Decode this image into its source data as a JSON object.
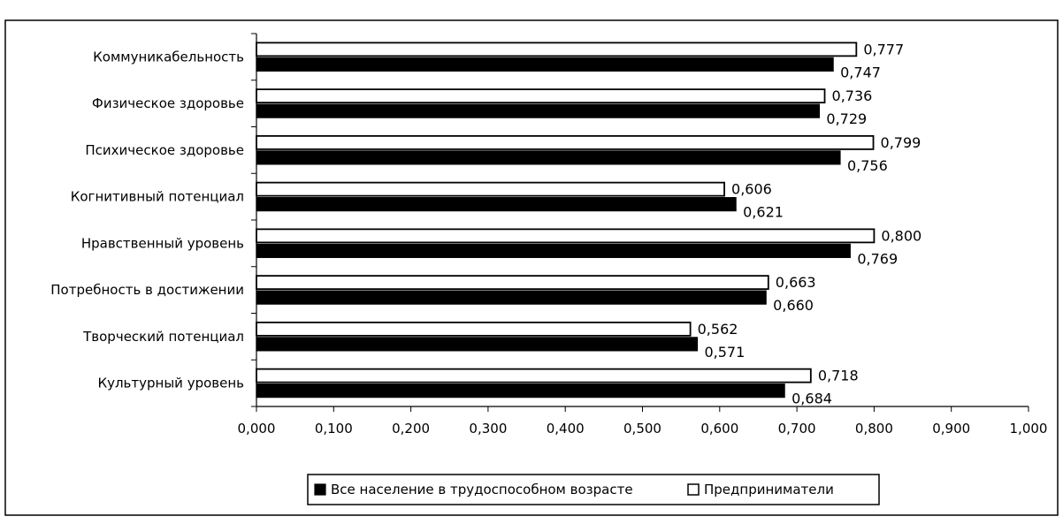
{
  "chart_data": {
    "type": "bar",
    "orientation": "horizontal",
    "title": "",
    "xlabel": "",
    "ylabel": "",
    "xlim": [
      0,
      1
    ],
    "x_ticks": [
      "0,000",
      "0,100",
      "0,200",
      "0,300",
      "0,400",
      "0,500",
      "0,600",
      "0,700",
      "0,800",
      "0,900",
      "1,000"
    ],
    "categories": [
      "Коммуникабельность",
      "Физическое здоровье",
      "Психическое здоровье",
      "Когнитивный потенциал",
      "Нравственный уровень",
      "Потребность в достижении",
      "Творческий потенциал",
      "Культурный уровень"
    ],
    "series": [
      {
        "name": "Все население в трудоспособном возрасте",
        "color": "#000000",
        "values": [
          0.747,
          0.729,
          0.756,
          0.621,
          0.769,
          0.66,
          0.571,
          0.684
        ],
        "labels": [
          "0,747",
          "0,729",
          "0,756",
          "0,621",
          "0,769",
          "0,660",
          "0,571",
          "0,684"
        ]
      },
      {
        "name": "Предприниматели",
        "color": "#ffffff",
        "values": [
          0.777,
          0.736,
          0.799,
          0.606,
          0.8,
          0.663,
          0.562,
          0.718
        ],
        "labels": [
          "0,777",
          "0,736",
          "0,799",
          "0,606",
          "0,800",
          "0,663",
          "0,562",
          "0,718"
        ]
      }
    ],
    "legend_position": "bottom",
    "grid": false
  }
}
